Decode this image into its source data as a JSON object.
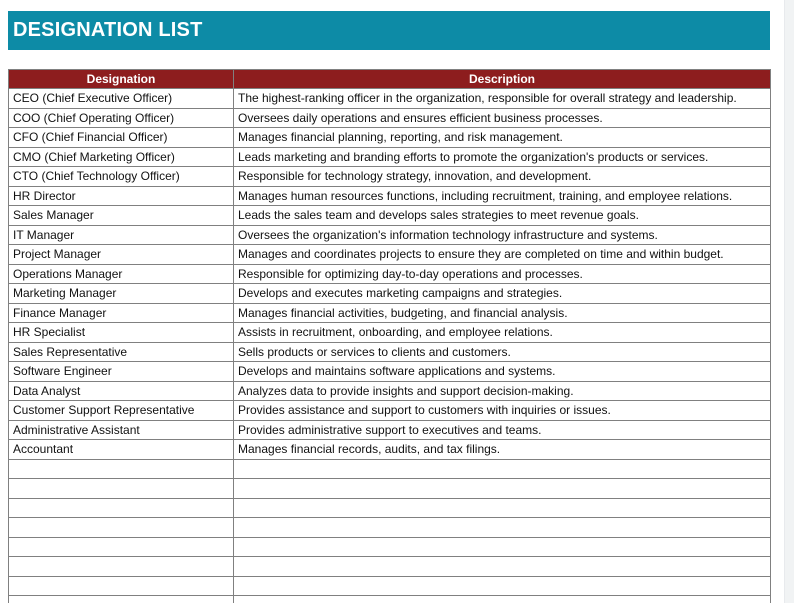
{
  "header": {
    "title": "DESIGNATION LIST"
  },
  "table": {
    "columns": [
      "Designation",
      "Description"
    ],
    "rows": [
      {
        "designation": "CEO (Chief Executive Officer)",
        "description": "The highest-ranking officer in the organization, responsible for overall strategy and leadership."
      },
      {
        "designation": "COO (Chief Operating Officer)",
        "description": "Oversees daily operations and ensures efficient business processes."
      },
      {
        "designation": "CFO (Chief Financial Officer)",
        "description": "Manages financial planning, reporting, and risk management."
      },
      {
        "designation": "CMO (Chief Marketing Officer)",
        "description": "Leads marketing and branding efforts to promote the organization's products or services."
      },
      {
        "designation": "CTO (Chief Technology Officer)",
        "description": "Responsible for technology strategy, innovation, and development."
      },
      {
        "designation": "HR Director",
        "description": "Manages human resources functions, including recruitment, training, and employee relations."
      },
      {
        "designation": "Sales Manager",
        "description": "Leads the sales team and develops sales strategies to meet revenue goals."
      },
      {
        "designation": "IT Manager",
        "description": "Oversees the organization's information technology infrastructure and systems."
      },
      {
        "designation": "Project Manager",
        "description": "Manages and coordinates projects to ensure they are completed on time and within budget."
      },
      {
        "designation": "Operations Manager",
        "description": "Responsible for optimizing day-to-day operations and processes."
      },
      {
        "designation": "Marketing Manager",
        "description": "Develops and executes marketing campaigns and strategies."
      },
      {
        "designation": "Finance Manager",
        "description": "Manages financial activities, budgeting, and financial analysis."
      },
      {
        "designation": "HR Specialist",
        "description": "Assists in recruitment, onboarding, and employee relations."
      },
      {
        "designation": "Sales Representative",
        "description": "Sells products or services to clients and customers."
      },
      {
        "designation": "Software Engineer",
        "description": "Develops and maintains software applications and systems."
      },
      {
        "designation": "Data Analyst",
        "description": "Analyzes data to provide insights and support decision-making."
      },
      {
        "designation": "Customer Support Representative",
        "description": "Provides assistance and support to customers with inquiries or issues."
      },
      {
        "designation": "Administrative Assistant",
        "description": "Provides administrative support to executives and teams."
      },
      {
        "designation": "Accountant",
        "description": "Manages financial records, audits, and tax filings."
      }
    ],
    "empty_row_count": 8
  },
  "colors": {
    "title_bar_bg": "#0d8ba6",
    "header_row_bg": "#8d1d1e",
    "border": "#808080",
    "header_text": "#ffffff",
    "cell_text": "#111111",
    "scrollbar_track": "#f1f3f4"
  }
}
